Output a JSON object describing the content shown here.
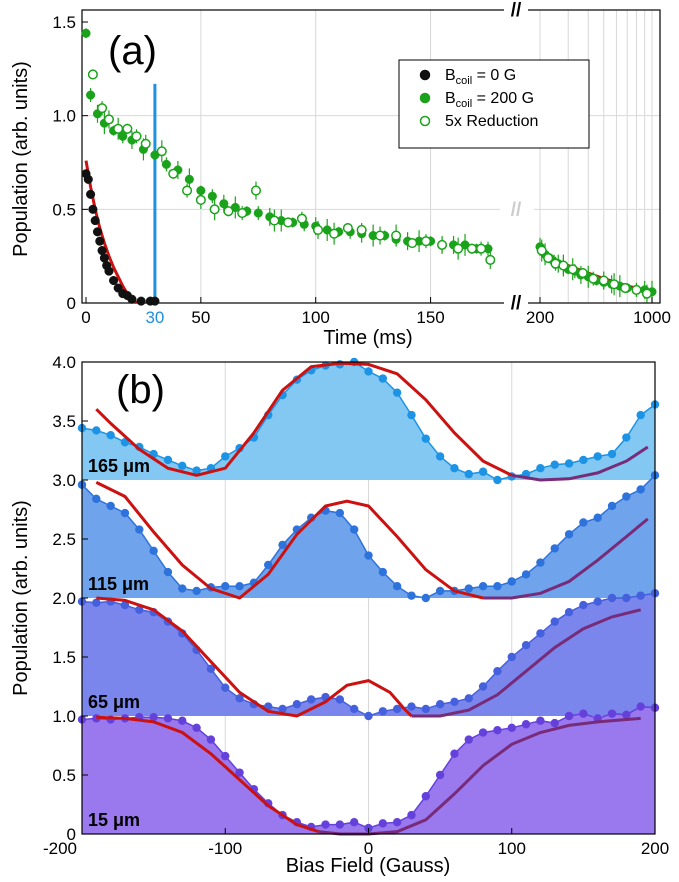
{
  "chart_data": [
    {
      "type": "scatter",
      "panel_label": "(a)",
      "xlabel": "Time (ms)",
      "ylabel": "Population (arb. units)",
      "x_broken": true,
      "segments": [
        {
          "range": [
            0,
            178
          ],
          "scale": "linear"
        },
        {
          "range": [
            200,
            1000
          ],
          "scale": "log"
        }
      ],
      "ylim": [
        0,
        1.5
      ],
      "x_ticks": [
        "0",
        "50",
        "100",
        "150",
        "200",
        "1000"
      ],
      "highlight_tick": "30",
      "y_ticks": [
        "0",
        "0.5",
        "1.0",
        "1.5"
      ],
      "break_marks": [
        "//",
        "//",
        "//"
      ],
      "legend": {
        "position": "top-right",
        "entries": [
          {
            "label_main": "B",
            "label_sub": "coil",
            "label_rest": " = 0 G",
            "marker": "filled",
            "color": "#111111"
          },
          {
            "label_main": "B",
            "label_sub": "coil",
            "label_rest": " = 200 G",
            "marker": "filled",
            "color": "#1aa31a"
          },
          {
            "label_main": "5x Reduction",
            "label_sub": "",
            "label_rest": "",
            "marker": "open",
            "color": "#1aa31a"
          }
        ]
      },
      "colors": {
        "black": "#111111",
        "green": "#1aa31a",
        "fit": "#cc1111",
        "marker_line": "#1e90e0",
        "grid": "#d8d8d8"
      },
      "series": [
        {
          "name": "B_coil = 0 G",
          "marker": "filled",
          "x": [
            0,
            1,
            2,
            3,
            4,
            5,
            6,
            7,
            8,
            9,
            10,
            12,
            14,
            16,
            18,
            20,
            24,
            28,
            30
          ],
          "y": [
            0.69,
            0.66,
            0.58,
            0.5,
            0.44,
            0.38,
            0.33,
            0.28,
            0.24,
            0.2,
            0.17,
            0.12,
            0.08,
            0.05,
            0.04,
            0.02,
            0.01,
            0.01,
            0.01
          ]
        },
        {
          "name": "B_coil = 200 G",
          "marker": "filled",
          "x": [
            0,
            2,
            5,
            8,
            12,
            16,
            20,
            25,
            30,
            35,
            40,
            45,
            50,
            55,
            60,
            65,
            70,
            75,
            80,
            85,
            90,
            95,
            100,
            105,
            110,
            115,
            120,
            125,
            130,
            135,
            140,
            145,
            150,
            155,
            160,
            165,
            170,
            175,
            200,
            215,
            230,
            245,
            260,
            280,
            300,
            330,
            360,
            400,
            450,
            500,
            560,
            630,
            700,
            800,
            900,
            1000
          ],
          "y": [
            1.44,
            1.11,
            1.01,
            0.96,
            0.92,
            0.89,
            0.87,
            0.82,
            0.79,
            0.74,
            0.71,
            0.66,
            0.6,
            0.57,
            0.53,
            0.51,
            0.49,
            0.48,
            0.46,
            0.44,
            0.43,
            0.42,
            0.41,
            0.39,
            0.38,
            0.38,
            0.37,
            0.36,
            0.36,
            0.34,
            0.33,
            0.33,
            0.33,
            0.31,
            0.31,
            0.31,
            0.29,
            0.29,
            0.3,
            0.26,
            0.24,
            0.22,
            0.21,
            0.2,
            0.18,
            0.17,
            0.15,
            0.14,
            0.12,
            0.11,
            0.1,
            0.09,
            0.08,
            0.07,
            0.07,
            0.06
          ]
        },
        {
          "name": "5x Reduction",
          "marker": "open",
          "x": [
            3,
            7,
            10,
            14,
            18,
            22,
            26,
            33,
            38,
            44,
            50,
            56,
            62,
            68,
            74,
            82,
            88,
            94,
            101,
            108,
            114,
            120,
            128,
            135,
            142,
            148,
            155,
            162,
            168,
            172,
            176,
            205,
            225,
            250,
            280,
            320,
            370,
            430,
            500,
            580,
            680,
            800,
            930
          ],
          "y": [
            1.22,
            1.04,
            0.98,
            0.93,
            0.93,
            0.89,
            0.85,
            0.81,
            0.69,
            0.6,
            0.55,
            0.5,
            0.49,
            0.48,
            0.6,
            0.44,
            0.43,
            0.45,
            0.39,
            0.37,
            0.4,
            0.39,
            0.36,
            0.36,
            0.32,
            0.33,
            0.31,
            0.29,
            0.29,
            0.29,
            0.23,
            0.28,
            0.24,
            0.21,
            0.2,
            0.18,
            0.16,
            0.13,
            0.12,
            0.1,
            0.08,
            0.07,
            0.05
          ]
        }
      ],
      "fits": [
        {
          "series": "B_coil = 0 G",
          "x": [
            0,
            2,
            4,
            6,
            8,
            10,
            12,
            14,
            16,
            18,
            20,
            22
          ],
          "y": [
            0.76,
            0.62,
            0.5,
            0.4,
            0.32,
            0.25,
            0.19,
            0.14,
            0.09,
            0.05,
            0.02,
            0.0
          ]
        },
        {
          "series": "B_coil = 200 G",
          "x": [
            200,
            250,
            300,
            400,
            500,
            600,
            700,
            800,
            900,
            1000
          ],
          "y": [
            0.28,
            0.23,
            0.2,
            0.16,
            0.13,
            0.11,
            0.09,
            0.08,
            0.07,
            0.06
          ]
        }
      ]
    },
    {
      "type": "area",
      "panel_label": "(b)",
      "xlabel": "Bias Field (Gauss)",
      "ylabel": "Population (arb. units)",
      "xlim": [
        -200,
        200
      ],
      "ylim": [
        0,
        4
      ],
      "x_ticks": [
        "-200",
        "-100",
        "0",
        "100",
        "200"
      ],
      "y_ticks": [
        "0",
        "0.5",
        "1.0",
        "1.5",
        "2.0",
        "2.5",
        "3.0",
        "3.5",
        "4.0"
      ],
      "colors": {
        "fit_red": "#cc1111",
        "fit_purple": "#772b78",
        "grid": "#d8d8d8"
      },
      "traces": [
        {
          "label": "165 μm",
          "offset": 3.0,
          "line_color": "#1d93e6",
          "fill_color": "#82c8f2",
          "x": [
            -200,
            -190,
            -180,
            -170,
            -160,
            -150,
            -140,
            -130,
            -120,
            -110,
            -100,
            -90,
            -80,
            -70,
            -60,
            -50,
            -40,
            -30,
            -20,
            -10,
            0,
            10,
            20,
            30,
            40,
            50,
            60,
            70,
            80,
            90,
            100,
            110,
            120,
            130,
            140,
            150,
            160,
            170,
            180,
            190,
            200
          ],
          "y": [
            0.44,
            0.42,
            0.38,
            0.32,
            0.28,
            0.22,
            0.17,
            0.12,
            0.08,
            0.1,
            0.2,
            0.27,
            0.36,
            0.55,
            0.72,
            0.85,
            0.93,
            0.97,
            0.98,
            1.0,
            0.92,
            0.86,
            0.74,
            0.55,
            0.35,
            0.2,
            0.1,
            0.05,
            0.07,
            0.0,
            0.03,
            0.05,
            0.1,
            0.13,
            0.14,
            0.17,
            0.2,
            0.22,
            0.36,
            0.55,
            0.64
          ]
        },
        {
          "label": "115 μm",
          "offset": 2.0,
          "line_color": "#2e72dc",
          "fill_color": "#6fa4ec",
          "x": [
            -200,
            -190,
            -180,
            -170,
            -160,
            -150,
            -140,
            -130,
            -120,
            -110,
            -100,
            -90,
            -80,
            -70,
            -60,
            -50,
            -40,
            -30,
            -20,
            -10,
            0,
            10,
            20,
            30,
            40,
            50,
            60,
            70,
            80,
            90,
            100,
            110,
            120,
            130,
            140,
            150,
            160,
            170,
            180,
            190,
            200
          ],
          "y": [
            0.96,
            0.84,
            0.78,
            0.72,
            0.58,
            0.4,
            0.22,
            0.08,
            0.06,
            0.09,
            0.1,
            0.1,
            0.13,
            0.28,
            0.45,
            0.58,
            0.68,
            0.74,
            0.72,
            0.58,
            0.36,
            0.22,
            0.1,
            0.02,
            0.0,
            0.06,
            0.06,
            0.08,
            0.1,
            0.1,
            0.14,
            0.2,
            0.3,
            0.42,
            0.54,
            0.64,
            0.68,
            0.78,
            0.86,
            0.92,
            1.04
          ]
        },
        {
          "label": "65 μm",
          "offset": 1.0,
          "line_color": "#4560dc",
          "fill_color": "#7b86ec",
          "x": [
            -200,
            -190,
            -180,
            -170,
            -160,
            -150,
            -140,
            -130,
            -120,
            -110,
            -100,
            -90,
            -80,
            -70,
            -60,
            -50,
            -40,
            -30,
            -20,
            -10,
            0,
            10,
            20,
            30,
            40,
            50,
            60,
            70,
            80,
            90,
            100,
            110,
            120,
            130,
            140,
            150,
            160,
            170,
            180,
            190,
            200
          ],
          "y": [
            0.97,
            0.96,
            0.97,
            0.94,
            0.9,
            0.88,
            0.8,
            0.7,
            0.56,
            0.4,
            0.24,
            0.15,
            0.1,
            0.08,
            0.06,
            0.1,
            0.14,
            0.16,
            0.14,
            0.06,
            0.0,
            0.04,
            0.06,
            0.08,
            0.06,
            0.1,
            0.12,
            0.15,
            0.25,
            0.38,
            0.5,
            0.6,
            0.7,
            0.8,
            0.88,
            0.94,
            0.97,
            1.0,
            1.0,
            1.02,
            1.04
          ]
        },
        {
          "label": "15 μm",
          "offset": 0.0,
          "line_color": "#6541dc",
          "fill_color": "#9a78ee",
          "x": [
            -200,
            -190,
            -180,
            -170,
            -160,
            -150,
            -140,
            -130,
            -120,
            -110,
            -100,
            -90,
            -80,
            -70,
            -60,
            -50,
            -40,
            -30,
            -20,
            -10,
            0,
            10,
            20,
            30,
            40,
            50,
            60,
            70,
            80,
            90,
            100,
            110,
            120,
            130,
            140,
            150,
            160,
            170,
            180,
            190,
            200
          ],
          "y": [
            0.97,
            0.98,
            0.97,
            0.98,
            0.99,
            0.99,
            0.98,
            0.96,
            0.9,
            0.8,
            0.66,
            0.52,
            0.38,
            0.26,
            0.16,
            0.1,
            0.06,
            0.08,
            0.08,
            0.1,
            0.05,
            0.09,
            0.1,
            0.16,
            0.32,
            0.5,
            0.68,
            0.8,
            0.86,
            0.88,
            0.9,
            0.93,
            0.96,
            0.94,
            1.0,
            1.02,
            0.98,
            1.02,
            1.01,
            1.08,
            1.07
          ]
        }
      ],
      "fits": [
        {
          "offset": 3.0,
          "red_x": [
            -190,
            -180,
            -160,
            -140,
            -120,
            -100,
            -80,
            -60,
            -40,
            -20,
            0,
            20,
            40,
            60,
            80,
            100
          ],
          "red_y": [
            0.6,
            0.48,
            0.26,
            0.1,
            0.04,
            0.1,
            0.4,
            0.76,
            0.96,
            0.99,
            0.98,
            0.9,
            0.68,
            0.4,
            0.16,
            0.04
          ],
          "purple_x": [
            100,
            120,
            140,
            160,
            180,
            195
          ],
          "purple_y": [
            0.04,
            0.0,
            0.01,
            0.06,
            0.16,
            0.28
          ]
        },
        {
          "offset": 2.0,
          "red_x": [
            -190,
            -170,
            -150,
            -130,
            -110,
            -90,
            -70,
            -50,
            -30,
            -15,
            0,
            20,
            40,
            60,
            80
          ],
          "red_y": [
            0.98,
            0.86,
            0.56,
            0.28,
            0.08,
            0.0,
            0.2,
            0.54,
            0.78,
            0.82,
            0.78,
            0.52,
            0.24,
            0.06,
            0.0
          ],
          "purple_x": [
            80,
            100,
            120,
            140,
            160,
            180,
            195
          ],
          "purple_y": [
            0.0,
            0.0,
            0.04,
            0.14,
            0.32,
            0.52,
            0.67
          ]
        },
        {
          "offset": 1.0,
          "red_x": [
            -190,
            -170,
            -150,
            -130,
            -110,
            -90,
            -70,
            -50,
            -30,
            -15,
            0,
            15,
            25,
            30
          ],
          "red_y": [
            1.0,
            0.98,
            0.9,
            0.72,
            0.46,
            0.2,
            0.04,
            0.0,
            0.12,
            0.26,
            0.3,
            0.2,
            0.06,
            0.0
          ],
          "purple_x": [
            30,
            50,
            70,
            90,
            110,
            130,
            150,
            170,
            190
          ],
          "purple_y": [
            0.0,
            0.0,
            0.05,
            0.18,
            0.38,
            0.58,
            0.74,
            0.84,
            0.9
          ]
        },
        {
          "offset": 0.0,
          "red_x": [
            -190,
            -170,
            -150,
            -130,
            -110,
            -90,
            -70,
            -50,
            -35
          ],
          "red_y": [
            0.99,
            0.98,
            0.95,
            0.86,
            0.68,
            0.46,
            0.24,
            0.08,
            0.02
          ],
          "purple_x": [
            -35,
            -20,
            0,
            20,
            40,
            60,
            80,
            100,
            120,
            140,
            160,
            180,
            190
          ],
          "purple_y": [
            0.02,
            0.0,
            0.0,
            0.02,
            0.12,
            0.34,
            0.58,
            0.76,
            0.86,
            0.92,
            0.95,
            0.97,
            0.98
          ]
        }
      ]
    }
  ]
}
